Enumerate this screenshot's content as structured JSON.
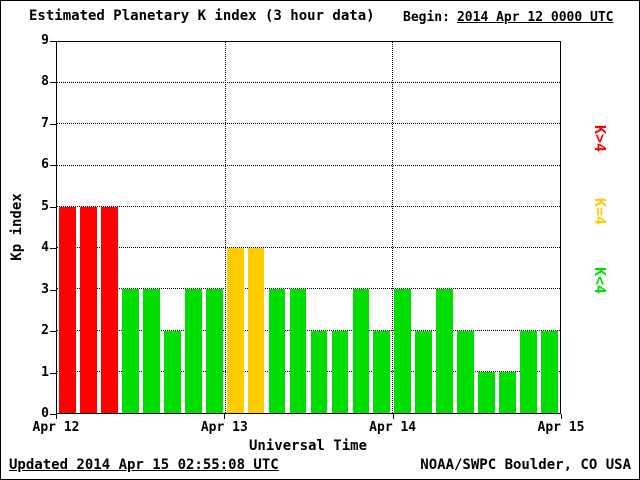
{
  "title": "Estimated Planetary K index (3 hour data)",
  "begin_label": "Begin:",
  "begin_value": "2014 Apr 12 0000 UTC",
  "axis": {
    "ylabel": "Kp index",
    "xlabel": "Universal Time"
  },
  "legend": [
    {
      "label": "K>4",
      "color": "#ff0000"
    },
    {
      "label": "K=4",
      "color": "#ffcc00"
    },
    {
      "label": "K<4",
      "color": "#00dd00"
    }
  ],
  "footer": {
    "updated": "Updated 2014 Apr 15 02:55:08 UTC",
    "source": "NOAA/SWPC Boulder, CO USA"
  },
  "chart_data": {
    "type": "bar",
    "title": "Estimated Planetary K index (3 hour data)",
    "begin": "2014 Apr 12 0000 UTC",
    "xlabel": "Universal Time",
    "ylabel": "Kp index",
    "ylim": [
      0,
      9
    ],
    "bin_hours": 3,
    "x_tick_labels": [
      "Apr 12",
      "Apr 13",
      "Apr 14",
      "Apr 15"
    ],
    "values": [
      5,
      5,
      5,
      3,
      3,
      2,
      3,
      3,
      4,
      4,
      3,
      3,
      2,
      2,
      3,
      2,
      3,
      2,
      3,
      2,
      1,
      1,
      2,
      2
    ],
    "colors_by_value": {
      "gt4": "#ff0000",
      "eq4": "#ffcc00",
      "lt4": "#00dd00"
    },
    "grid": "dotted horizontal at each integer, dotted vertical at day boundaries",
    "legend_position": "right, rotated"
  }
}
